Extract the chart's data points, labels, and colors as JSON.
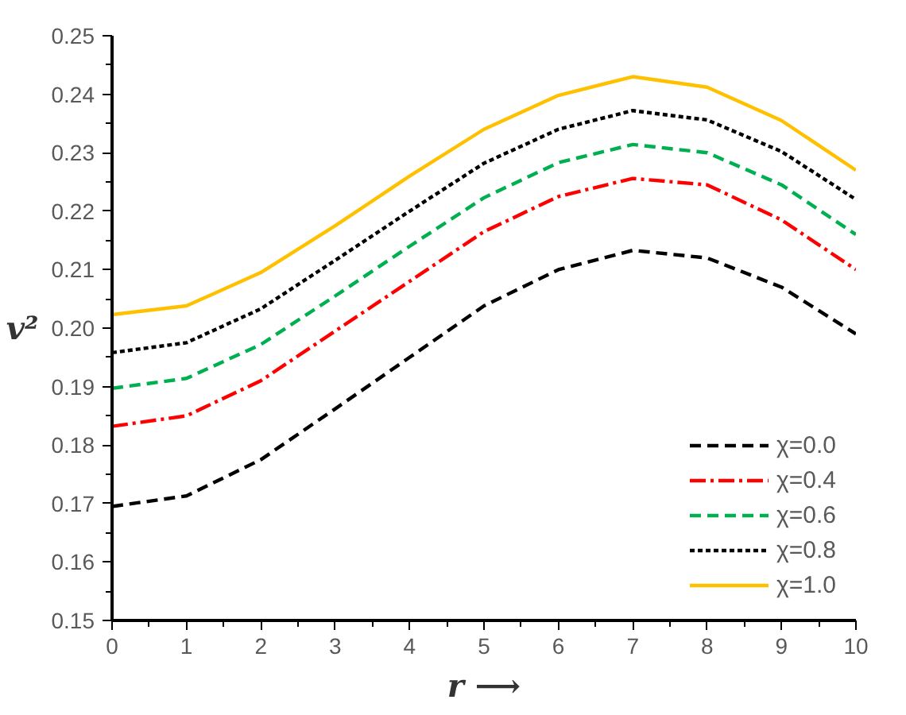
{
  "chart_data": {
    "type": "line",
    "xlabel": "r ⟶",
    "ylabel": "v²",
    "x": [
      0,
      1,
      2,
      3,
      4,
      5,
      6,
      7,
      8,
      9,
      10
    ],
    "series": [
      {
        "name": "χ=0.0",
        "color": "#000000",
        "line_style": "dashed",
        "values": [
          0.1695,
          0.1713,
          0.1775,
          0.1862,
          0.195,
          0.2038,
          0.21,
          0.2133,
          0.212,
          0.207,
          0.199
        ]
      },
      {
        "name": "χ=0.4",
        "color": "#ff0000",
        "line_style": "dashdot",
        "values": [
          0.1832,
          0.185,
          0.191,
          0.1995,
          0.208,
          0.2165,
          0.2225,
          0.2256,
          0.2245,
          0.2185,
          0.21
        ]
      },
      {
        "name": "χ=0.6",
        "color": "#00b050",
        "line_style": "dashed",
        "values": [
          0.1897,
          0.1914,
          0.1972,
          0.2055,
          0.214,
          0.2223,
          0.2283,
          0.2314,
          0.23,
          0.2245,
          0.216
        ]
      },
      {
        "name": "χ=0.8",
        "color": "#000000",
        "line_style": "dotted",
        "values": [
          0.1958,
          0.1975,
          0.2033,
          0.2116,
          0.22,
          0.2282,
          0.234,
          0.2372,
          0.2356,
          0.2302,
          0.222
        ]
      },
      {
        "name": "χ=1.0",
        "color": "#ffc000",
        "line_style": "solid",
        "values": [
          0.2023,
          0.2038,
          0.2095,
          0.2175,
          0.226,
          0.234,
          0.2398,
          0.243,
          0.2412,
          0.2355,
          0.227
        ]
      }
    ],
    "xlim": [
      0,
      10
    ],
    "xticks": [
      0,
      1,
      2,
      3,
      4,
      5,
      6,
      7,
      8,
      9,
      10
    ],
    "ylim": [
      0.15,
      0.25
    ],
    "yticks": [
      0.15,
      0.16,
      0.17,
      0.18,
      0.19,
      {
        "value": 0.2,
        "label": "0.20"
      },
      0.21,
      0.22,
      0.23,
      0.24,
      0.25
    ],
    "grid": false,
    "legend": "bottom right",
    "marker": "none"
  }
}
